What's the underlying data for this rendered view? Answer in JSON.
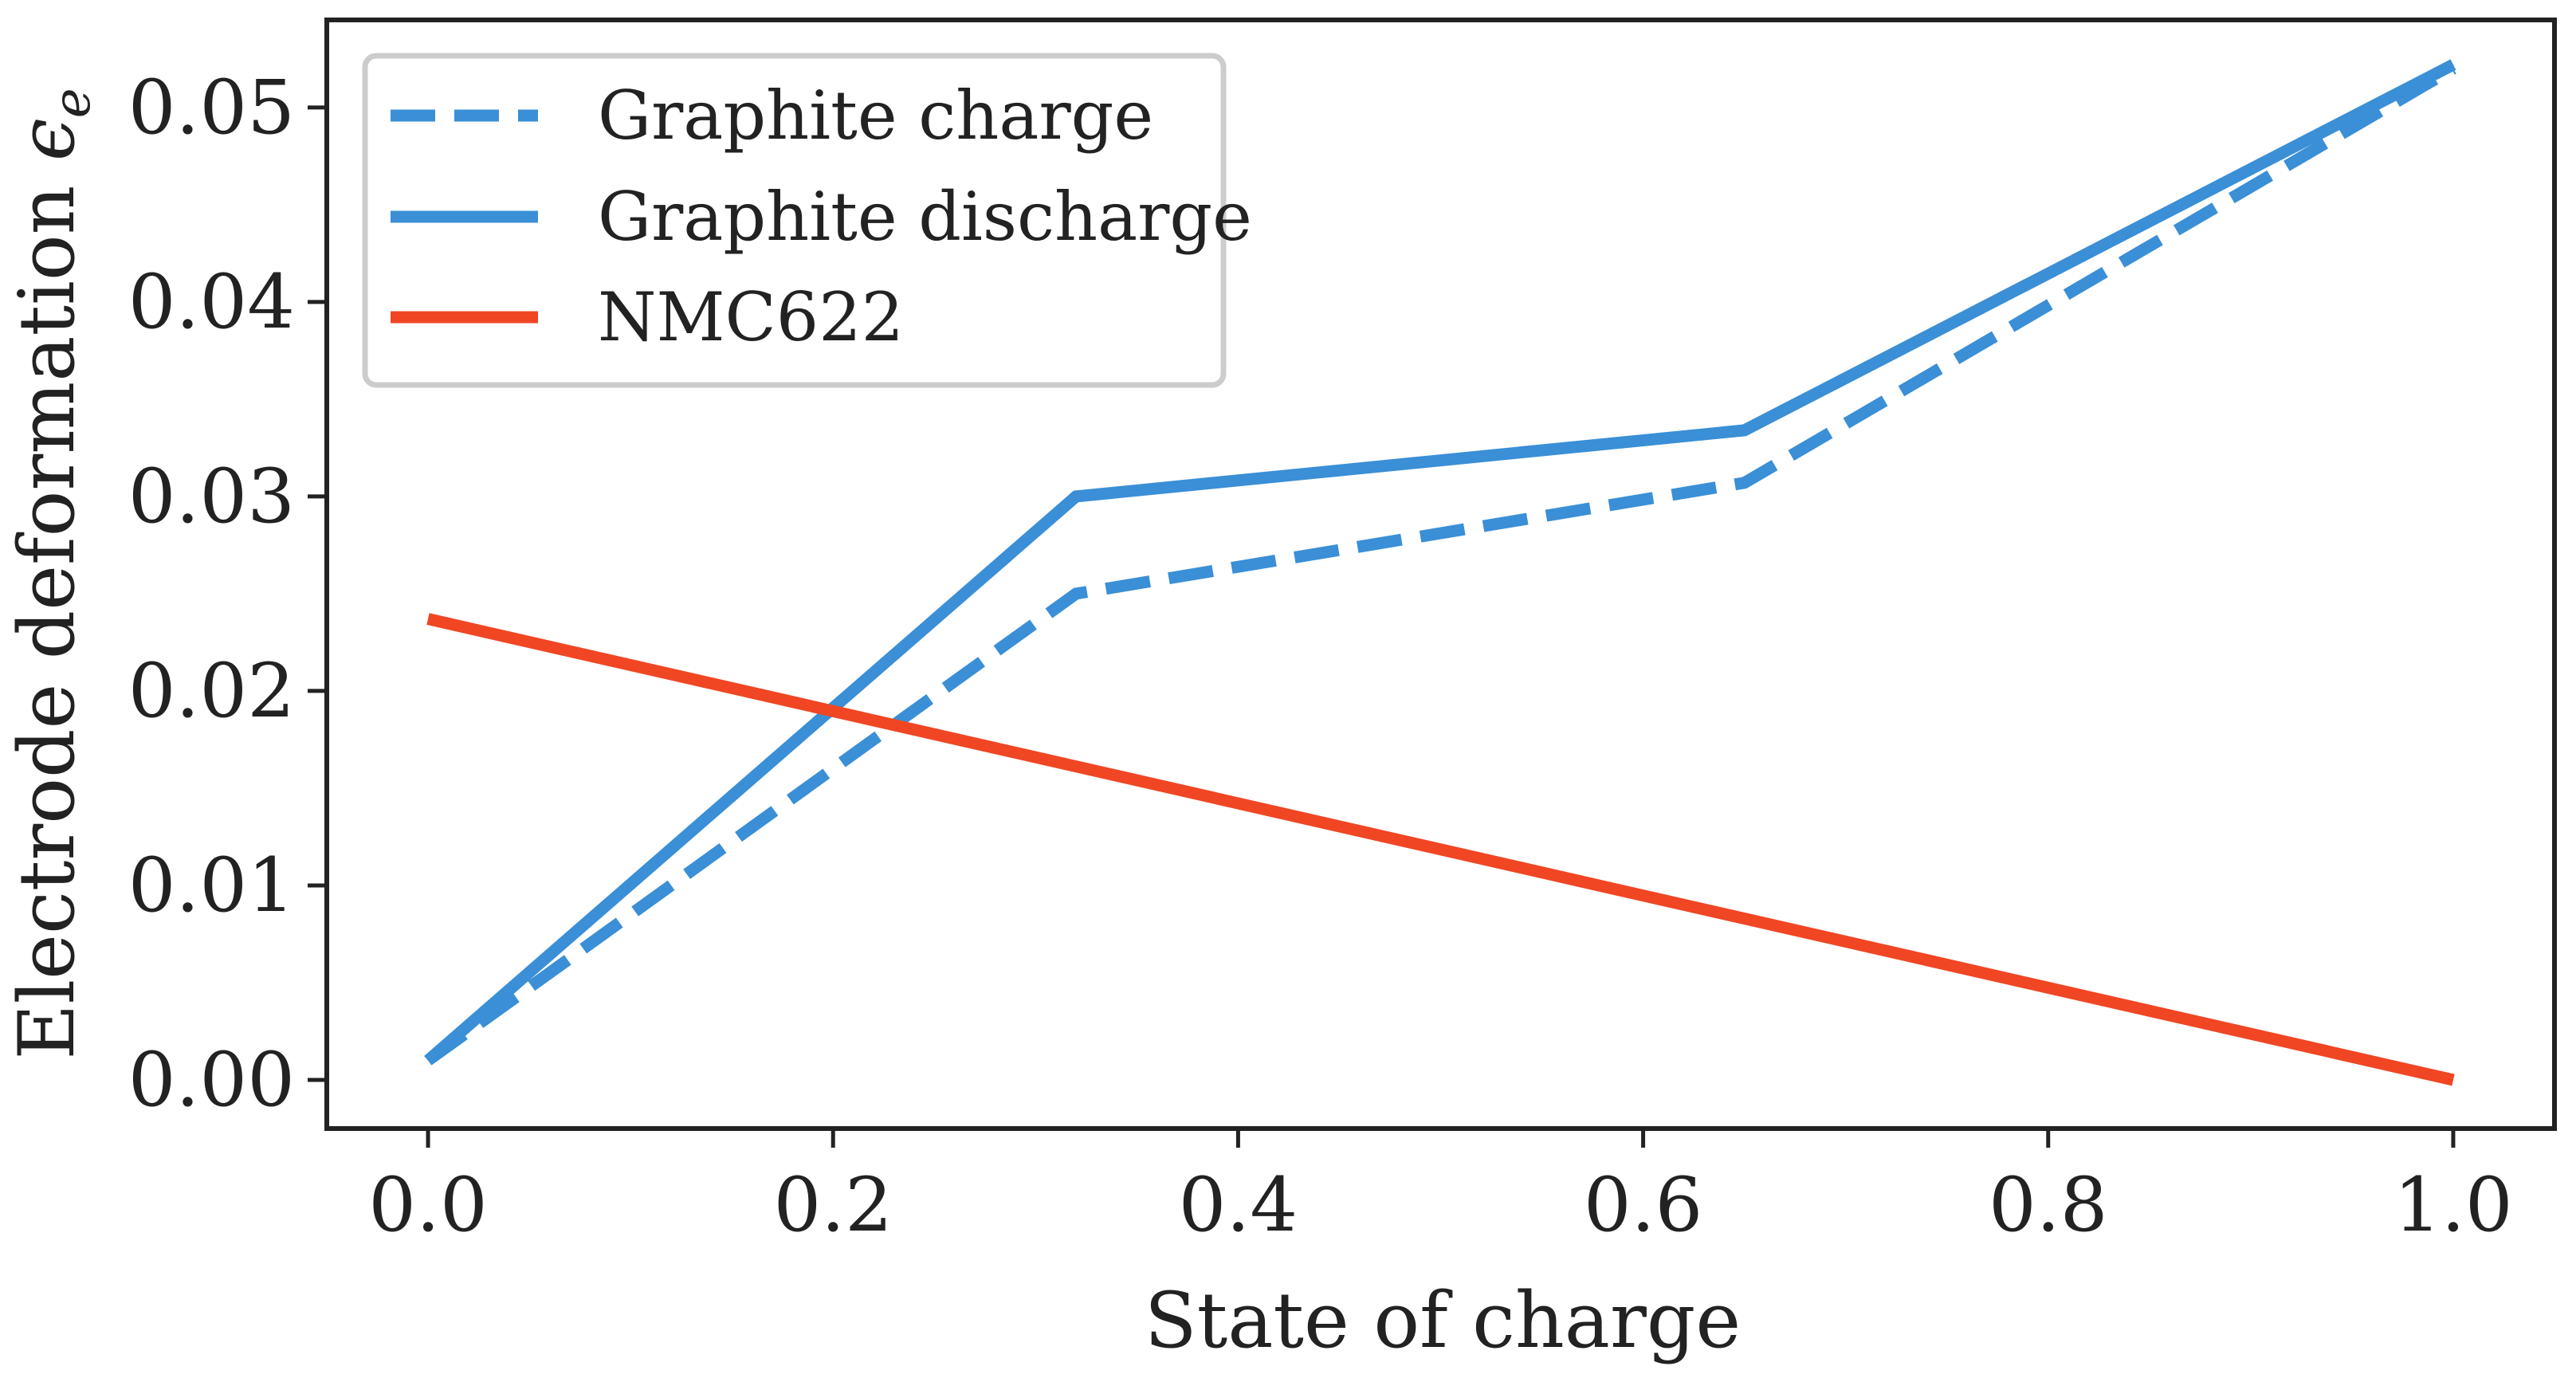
{
  "chart_data": {
    "type": "line",
    "title": "",
    "xlabel": "State of charge",
    "ylabel": "Electrode deformation ",
    "ylabel_symbol": "ϵ",
    "ylabel_subscript": "e",
    "xlim": [
      -0.05,
      1.05
    ],
    "ylim": [
      -0.0025,
      0.0545
    ],
    "xticks": [
      0.0,
      0.2,
      0.4,
      0.6,
      0.8,
      1.0
    ],
    "xtick_labels": [
      "0.0",
      "0.2",
      "0.4",
      "0.6",
      "0.8",
      "1.0"
    ],
    "yticks": [
      0.0,
      0.01,
      0.02,
      0.03,
      0.04,
      0.05
    ],
    "ytick_labels": [
      "0.00",
      "0.01",
      "0.02",
      "0.03",
      "0.04",
      "0.05"
    ],
    "grid": false,
    "legend_position": "top-left",
    "series": [
      {
        "name": "Graphite charge",
        "color": "#3a8fd6",
        "linestyle": "dashed",
        "x": [
          0.0,
          0.32,
          0.65,
          1.0
        ],
        "y": [
          0.001,
          0.025,
          0.0307,
          0.052
        ]
      },
      {
        "name": "Graphite discharge",
        "color": "#3a8fd6",
        "linestyle": "solid",
        "x": [
          0.0,
          0.32,
          0.65,
          1.0
        ],
        "y": [
          0.001,
          0.03,
          0.0334,
          0.0522
        ]
      },
      {
        "name": "NMC622",
        "color": "#f04624",
        "linestyle": "solid",
        "x": [
          0.0,
          1.0
        ],
        "y": [
          0.0237,
          0.0
        ]
      }
    ]
  }
}
